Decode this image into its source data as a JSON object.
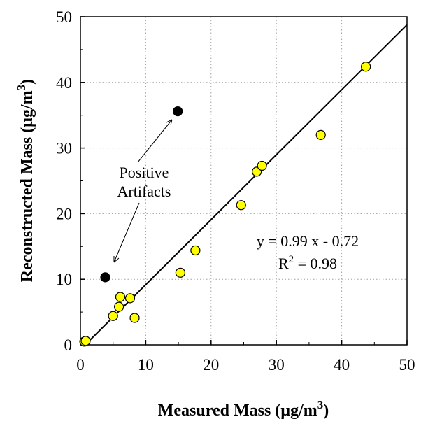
{
  "chart_data": {
    "type": "scatter",
    "xlabel_prefix": "Measured Mass (µg/m",
    "xlabel_sup": "3",
    "xlabel_suffix": ")",
    "ylabel_prefix": "Reconstructed Mass (µg/m",
    "ylabel_sup": "3",
    "ylabel_suffix": ")",
    "xlim": [
      0,
      50
    ],
    "ylim": [
      0,
      50
    ],
    "xticks": [
      "0",
      "10",
      "20",
      "30",
      "40",
      "50"
    ],
    "yticks": [
      "0",
      "10",
      "20",
      "30",
      "40",
      "50"
    ],
    "grid": "dotted",
    "series": [
      {
        "color": "#ffff00",
        "points": [
          [
            0.6,
            0.5
          ],
          [
            0.8,
            0.6
          ],
          [
            5.0,
            4.4
          ],
          [
            5.9,
            5.8
          ],
          [
            6.1,
            7.3
          ],
          [
            7.6,
            7.1
          ],
          [
            8.3,
            4.1
          ],
          [
            15.3,
            11.0
          ],
          [
            17.6,
            14.4
          ],
          [
            24.6,
            21.3
          ],
          [
            27.0,
            26.4
          ],
          [
            27.8,
            27.3
          ],
          [
            36.8,
            32.0
          ],
          [
            43.7,
            42.4
          ]
        ]
      },
      {
        "color": "#000000",
        "points": [
          [
            3.8,
            10.3
          ],
          [
            14.9,
            35.6
          ]
        ]
      }
    ],
    "fit_line": {
      "slope": 0.99,
      "intercept": -0.72
    },
    "annotations": {
      "artifacts_line1": "Positive",
      "artifacts_line2": "Artifacts",
      "equation": "y = 0.99 x - 0.72",
      "r2_prefix": "R",
      "r2_sup": "2",
      "r2_suffix": " = 0.98"
    }
  }
}
